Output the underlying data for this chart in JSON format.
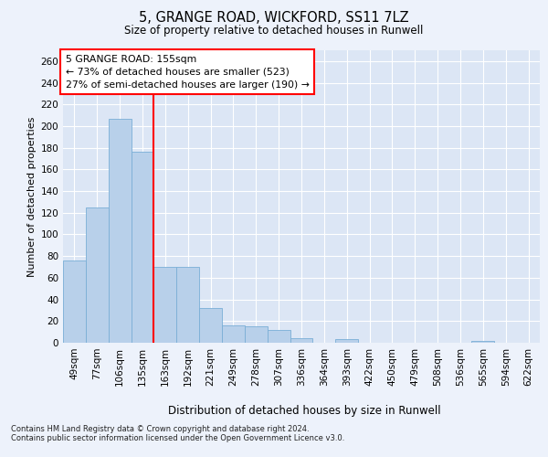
{
  "title1": "5, GRANGE ROAD, WICKFORD, SS11 7LZ",
  "title2": "Size of property relative to detached houses in Runwell",
  "xlabel": "Distribution of detached houses by size in Runwell",
  "ylabel": "Number of detached properties",
  "bar_labels": [
    "49sqm",
    "77sqm",
    "106sqm",
    "135sqm",
    "163sqm",
    "192sqm",
    "221sqm",
    "249sqm",
    "278sqm",
    "307sqm",
    "336sqm",
    "364sqm",
    "393sqm",
    "422sqm",
    "450sqm",
    "479sqm",
    "508sqm",
    "536sqm",
    "565sqm",
    "594sqm",
    "622sqm"
  ],
  "bar_values": [
    76,
    125,
    207,
    176,
    70,
    70,
    32,
    16,
    15,
    12,
    4,
    0,
    3,
    0,
    0,
    0,
    0,
    0,
    2,
    0,
    0
  ],
  "bar_color": "#b8d0ea",
  "bar_edgecolor": "#7aaed6",
  "vline_x": 3.5,
  "vline_color": "red",
  "annotation_text": "5 GRANGE ROAD: 155sqm\n← 73% of detached houses are smaller (523)\n27% of semi-detached houses are larger (190) →",
  "annotation_box_color": "white",
  "annotation_box_edgecolor": "red",
  "ylim": [
    0,
    270
  ],
  "yticks": [
    0,
    20,
    40,
    60,
    80,
    100,
    120,
    140,
    160,
    180,
    200,
    220,
    240,
    260
  ],
  "footnote1": "Contains HM Land Registry data © Crown copyright and database right 2024.",
  "footnote2": "Contains public sector information licensed under the Open Government Licence v3.0.",
  "bg_color": "#edf2fb",
  "plot_bg_color": "#dce6f5"
}
